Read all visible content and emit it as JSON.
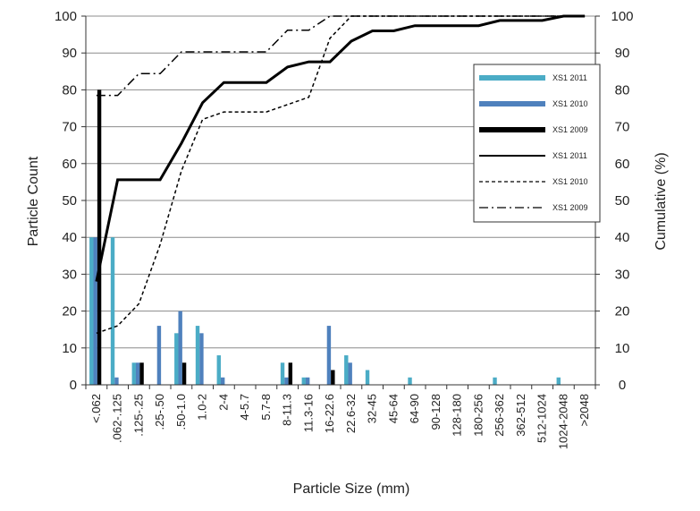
{
  "chart_data": {
    "type": "bar+line",
    "xlabel": "Particle Size (mm)",
    "ylabel": "Particle Count",
    "y2label": "Cumulative (%)",
    "ylim": [
      0,
      100
    ],
    "y2lim": [
      0,
      100
    ],
    "yticks": [
      "0",
      "10",
      "20",
      "30",
      "40",
      "50",
      "60",
      "70",
      "80",
      "90",
      "100"
    ],
    "y2ticks": [
      "0",
      "10",
      "20",
      "30",
      "40",
      "50",
      "60",
      "70",
      "80",
      "90",
      "100"
    ],
    "grid": true,
    "legend_position": "right",
    "categories": [
      "<.062",
      ".062-.125",
      ".125-.25",
      ".25-.50",
      ".50-1.0",
      "1.0-2",
      "2-4",
      "4-5.7",
      "5.7-8",
      "8-11.3",
      "11.3-16",
      "16-22.6",
      "22.6-32",
      "32-45",
      "45-64",
      "64-90",
      "90-128",
      "128-180",
      "180-256",
      "256-362",
      "362-512",
      "512-1024",
      "1024-2048",
      ">2048"
    ],
    "bar_series": [
      {
        "name": "XS1 2011",
        "color": "#4bacc6",
        "values": [
          40,
          40,
          6,
          0,
          14,
          16,
          8,
          0,
          0,
          6,
          2,
          0,
          8,
          4,
          0,
          2,
          0,
          0,
          0,
          2,
          0,
          0,
          2,
          0
        ]
      },
      {
        "name": "XS1 2010",
        "color": "#4f81bd",
        "values": [
          40,
          2,
          6,
          16,
          20,
          14,
          2,
          0,
          0,
          2,
          2,
          16,
          6,
          0,
          0,
          0,
          0,
          0,
          0,
          0,
          0,
          0,
          0,
          0
        ]
      },
      {
        "name": "XS1 2009",
        "color": "#000000",
        "values": [
          80,
          0,
          6,
          0,
          6,
          0,
          0,
          0,
          0,
          6,
          0,
          4,
          0,
          0,
          0,
          0,
          0,
          0,
          0,
          0,
          0,
          0,
          0,
          0
        ]
      }
    ],
    "line_series": [
      {
        "name": "XS1 2011",
        "style": "solid",
        "values": [
          28,
          55.6,
          55.6,
          55.6,
          65.5,
          76.5,
          82,
          82,
          82,
          86.2,
          87.6,
          87.6,
          93.2,
          96,
          96,
          97.4,
          97.4,
          97.4,
          97.4,
          98.8,
          98.8,
          98.8,
          100,
          100
        ]
      },
      {
        "name": "XS1 2010",
        "style": "dashed",
        "values": [
          14,
          16,
          22,
          38,
          58,
          72,
          74,
          74,
          74,
          76,
          78,
          94,
          100,
          100,
          100,
          100,
          100,
          100,
          100,
          100,
          100,
          100,
          100,
          100
        ]
      },
      {
        "name": "XS1 2009",
        "style": "dashdot",
        "values": [
          78.5,
          78.5,
          84.4,
          84.4,
          90.3,
          90.3,
          90.3,
          90.3,
          90.3,
          96.2,
          96.2,
          100,
          100,
          100,
          100,
          100,
          100,
          100,
          100,
          100,
          100,
          100,
          100,
          100
        ]
      }
    ]
  }
}
